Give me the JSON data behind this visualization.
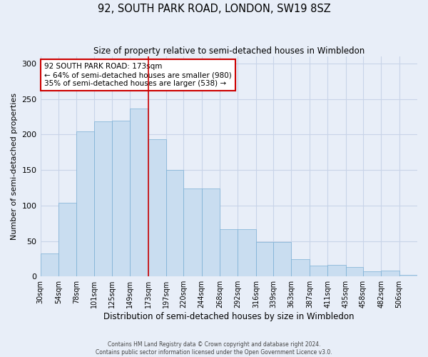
{
  "title1": "92, SOUTH PARK ROAD, LONDON, SW19 8SZ",
  "title2": "Size of property relative to semi-detached houses in Wimbledon",
  "xlabel": "Distribution of semi-detached houses by size in Wimbledon",
  "ylabel": "Number of semi-detached properties",
  "annotation_title": "92 SOUTH PARK ROAD: 173sqm",
  "annotation_line1": "← 64% of semi-detached houses are smaller (980)",
  "annotation_line2": "35% of semi-detached houses are larger (538) →",
  "property_size": 173,
  "footer1": "Contains HM Land Registry data © Crown copyright and database right 2024.",
  "footer2": "Contains public sector information licensed under the Open Government Licence v3.0.",
  "bar_color": "#c9ddf0",
  "bar_edge_color": "#7aafd4",
  "vline_color": "#cc0000",
  "annotation_box_color": "#ffffff",
  "annotation_box_edge": "#cc0000",
  "grid_color": "#c8d4e8",
  "bg_color": "#e8eef8",
  "bins": [
    30,
    54,
    78,
    101,
    125,
    149,
    173,
    197,
    220,
    244,
    268,
    292,
    316,
    339,
    363,
    387,
    411,
    435,
    458,
    482,
    506
  ],
  "heights": [
    32,
    104,
    205,
    219,
    220,
    237,
    193,
    150,
    124,
    124,
    67,
    67,
    49,
    49,
    24,
    15,
    16,
    13,
    7,
    8,
    2
  ],
  "bin_labels": [
    "30sqm",
    "54sqm",
    "78sqm",
    "101sqm",
    "125sqm",
    "149sqm",
    "173sqm",
    "197sqm",
    "220sqm",
    "244sqm",
    "268sqm",
    "292sqm",
    "316sqm",
    "339sqm",
    "363sqm",
    "387sqm",
    "411sqm",
    "435sqm",
    "458sqm",
    "482sqm",
    "506sqm"
  ],
  "ylim": [
    0,
    310
  ],
  "yticks": [
    0,
    50,
    100,
    150,
    200,
    250,
    300
  ]
}
